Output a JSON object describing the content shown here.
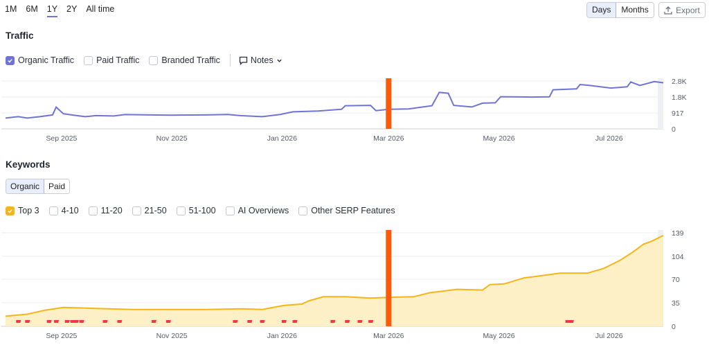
{
  "range_tabs": [
    {
      "label": "1M",
      "active": false
    },
    {
      "label": "6M",
      "active": false
    },
    {
      "label": "1Y",
      "active": true
    },
    {
      "label": "2Y",
      "active": false
    },
    {
      "label": "All time",
      "active": false
    }
  ],
  "view_toggle": {
    "days_label": "Days",
    "months_label": "Months",
    "active": "Days"
  },
  "export_label": "Export",
  "traffic": {
    "title": "Traffic",
    "series_options": [
      {
        "label": "Organic Traffic",
        "checked": true
      },
      {
        "label": "Paid Traffic",
        "checked": false
      },
      {
        "label": "Branded Traffic",
        "checked": false
      }
    ],
    "notes_label": "Notes"
  },
  "keywords": {
    "title": "Keywords",
    "tabs": [
      {
        "label": "Organic",
        "active": true
      },
      {
        "label": "Paid",
        "active": false
      }
    ],
    "series_options": [
      {
        "label": "Top 3",
        "checked": true
      },
      {
        "label": "4-10",
        "checked": false
      },
      {
        "label": "11-20",
        "checked": false
      },
      {
        "label": "21-50",
        "checked": false
      },
      {
        "label": "51-100",
        "checked": false
      },
      {
        "label": "AI Overviews",
        "checked": false
      },
      {
        "label": "Other SERP Features",
        "checked": false
      }
    ]
  },
  "colors": {
    "traffic_line": "#6f72d6",
    "top3_line": "#f6b418",
    "top3_fill": "#fdefc6",
    "marker": "#ff5a0a",
    "flag": "#f4364c"
  },
  "chart_data": [
    {
      "type": "line",
      "name": "traffic",
      "x_range": [
        "2025-08-01",
        "2026-07-31"
      ],
      "x_tick_labels": [
        {
          "date": "2025-09-01",
          "label": "Sep 2025"
        },
        {
          "date": "2025-11-01",
          "label": "Nov 2025"
        },
        {
          "date": "2026-01-01",
          "label": "Jan 2026"
        },
        {
          "date": "2026-03-01",
          "label": "Mar 2026"
        },
        {
          "date": "2026-05-01",
          "label": "May 2026"
        },
        {
          "date": "2026-07-01",
          "label": "Jul 2026"
        }
      ],
      "y_ticks": [
        {
          "value": 0,
          "label": "0"
        },
        {
          "value": 917,
          "label": "917"
        },
        {
          "value": 1834,
          "label": "1.8K"
        },
        {
          "value": 2751,
          "label": "2.8K"
        }
      ],
      "ylim": [
        0,
        2751
      ],
      "marker_date": "2026-03-01",
      "series": [
        {
          "name": "Organic Traffic",
          "points": [
            [
              "2025-08-01",
              620
            ],
            [
              "2025-08-08",
              700
            ],
            [
              "2025-08-13",
              620
            ],
            [
              "2025-08-20",
              700
            ],
            [
              "2025-08-27",
              800
            ],
            [
              "2025-08-29",
              1250
            ],
            [
              "2025-09-02",
              870
            ],
            [
              "2025-09-08",
              780
            ],
            [
              "2025-09-14",
              700
            ],
            [
              "2025-09-20",
              760
            ],
            [
              "2025-09-30",
              740
            ],
            [
              "2025-10-06",
              820
            ],
            [
              "2025-10-20",
              800
            ],
            [
              "2025-11-01",
              790
            ],
            [
              "2025-11-20",
              800
            ],
            [
              "2025-12-02",
              830
            ],
            [
              "2025-12-09",
              760
            ],
            [
              "2025-12-21",
              700
            ],
            [
              "2025-12-31",
              830
            ],
            [
              "2026-01-07",
              980
            ],
            [
              "2026-01-21",
              1030
            ],
            [
              "2026-02-03",
              1130
            ],
            [
              "2026-02-05",
              1330
            ],
            [
              "2026-02-19",
              1350
            ],
            [
              "2026-02-22",
              1050
            ],
            [
              "2026-03-01",
              1130
            ],
            [
              "2026-03-12",
              1150
            ],
            [
              "2026-03-25",
              1330
            ],
            [
              "2026-03-29",
              2100
            ],
            [
              "2026-04-03",
              2050
            ],
            [
              "2026-04-06",
              1350
            ],
            [
              "2026-04-16",
              1260
            ],
            [
              "2026-04-22",
              1480
            ],
            [
              "2026-04-29",
              1500
            ],
            [
              "2026-05-02",
              1850
            ],
            [
              "2026-05-19",
              1830
            ],
            [
              "2026-05-29",
              1840
            ],
            [
              "2026-05-31",
              2250
            ],
            [
              "2026-06-13",
              2300
            ],
            [
              "2026-06-15",
              2550
            ],
            [
              "2026-06-20",
              2500
            ],
            [
              "2026-07-02",
              2350
            ],
            [
              "2026-07-11",
              2420
            ],
            [
              "2026-07-13",
              2700
            ],
            [
              "2026-07-18",
              2500
            ],
            [
              "2026-07-26",
              2720
            ],
            [
              "2026-07-31",
              2650
            ]
          ]
        }
      ]
    },
    {
      "type": "area",
      "name": "keywords",
      "x_range": [
        "2025-08-01",
        "2026-07-31"
      ],
      "x_tick_labels": [
        {
          "date": "2025-09-01",
          "label": "Sep 2025"
        },
        {
          "date": "2025-11-01",
          "label": "Nov 2025"
        },
        {
          "date": "2026-01-01",
          "label": "Jan 2026"
        },
        {
          "date": "2026-03-01",
          "label": "Mar 2026"
        },
        {
          "date": "2026-05-01",
          "label": "May 2026"
        },
        {
          "date": "2026-07-01",
          "label": "Jul 2026"
        }
      ],
      "y_ticks": [
        {
          "value": 0,
          "label": "0"
        },
        {
          "value": 35,
          "label": "35"
        },
        {
          "value": 70,
          "label": "70"
        },
        {
          "value": 104,
          "label": "104"
        },
        {
          "value": 139,
          "label": "139"
        }
      ],
      "ylim": [
        0,
        139
      ],
      "marker_date": "2026-03-01",
      "series": [
        {
          "name": "Top 3",
          "points": [
            [
              "2025-08-01",
              15
            ],
            [
              "2025-08-13",
              18
            ],
            [
              "2025-08-23",
              24
            ],
            [
              "2025-09-02",
              28
            ],
            [
              "2025-09-15",
              27
            ],
            [
              "2025-10-10",
              25
            ],
            [
              "2025-11-20",
              25
            ],
            [
              "2025-12-10",
              26
            ],
            [
              "2025-12-21",
              25
            ],
            [
              "2026-01-02",
              31
            ],
            [
              "2026-01-12",
              33
            ],
            [
              "2026-01-16",
              38
            ],
            [
              "2026-01-24",
              44
            ],
            [
              "2026-02-05",
              44
            ],
            [
              "2026-02-19",
              42
            ],
            [
              "2026-03-01",
              43
            ],
            [
              "2026-03-15",
              44
            ],
            [
              "2026-03-24",
              50
            ],
            [
              "2026-04-08",
              55
            ],
            [
              "2026-04-22",
              54
            ],
            [
              "2026-04-26",
              62
            ],
            [
              "2026-05-04",
              63
            ],
            [
              "2026-05-15",
              72
            ],
            [
              "2026-05-21",
              74
            ],
            [
              "2026-06-04",
              79
            ],
            [
              "2026-06-19",
              79
            ],
            [
              "2026-06-28",
              86
            ],
            [
              "2026-07-07",
              98
            ],
            [
              "2026-07-14",
              110
            ],
            [
              "2026-07-20",
              122
            ],
            [
              "2026-07-25",
              127
            ],
            [
              "2026-07-31",
              135
            ]
          ]
        }
      ],
      "flag_dates": [
        "2025-08-08",
        "2025-08-13",
        "2025-08-25",
        "2025-08-29",
        "2025-09-04",
        "2025-09-07",
        "2025-09-09",
        "2025-09-12",
        "2025-09-25",
        "2025-10-03",
        "2025-10-22",
        "2025-10-30",
        "2025-12-06",
        "2025-12-14",
        "2025-12-21",
        "2026-01-02",
        "2026-01-08",
        "2026-01-29",
        "2026-02-06",
        "2026-02-13",
        "2026-02-19",
        "2026-06-08",
        "2026-06-10"
      ]
    }
  ]
}
